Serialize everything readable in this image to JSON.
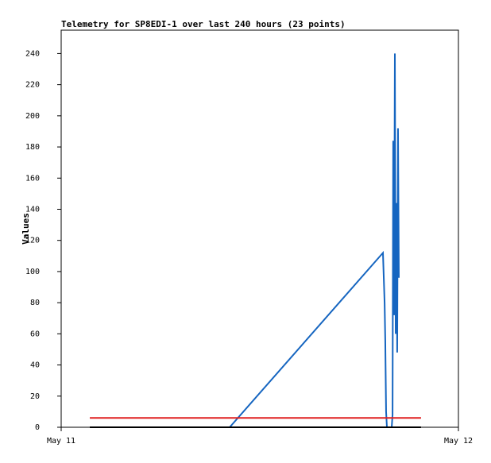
{
  "chart_data": {
    "type": "line",
    "title": "Telemetry for SP8EDI-1 over last 240 hours (23 points)",
    "y_label": "Values",
    "xlim": [
      0,
      24
    ],
    "xticks": [
      {
        "value": 0,
        "label": "May 11"
      },
      {
        "value": 24,
        "label": "May 12"
      }
    ],
    "ylim": [
      0,
      255
    ],
    "yticks": [
      0,
      20,
      40,
      60,
      80,
      100,
      120,
      140,
      160,
      180,
      200,
      220,
      240
    ],
    "series": [
      {
        "color": "#1565c0",
        "x": [
          10.18,
          19.44,
          19.54,
          19.58,
          19.63,
          19.68,
          19.97,
          20.02,
          20.06,
          20.11,
          20.16,
          20.21,
          20.26,
          20.3,
          20.35,
          20.4
        ],
        "values": [
          0,
          112,
          80,
          56,
          10,
          0,
          0,
          8,
          184,
          72,
          240,
          60,
          144,
          48,
          192,
          96
        ]
      },
      {
        "color": "#e02020",
        "x": [
          1.73,
          21.74
        ],
        "values": [
          6,
          6
        ]
      },
      {
        "color": "#000000",
        "x": [
          1.73,
          21.74
        ],
        "values": [
          0,
          0
        ]
      }
    ]
  }
}
